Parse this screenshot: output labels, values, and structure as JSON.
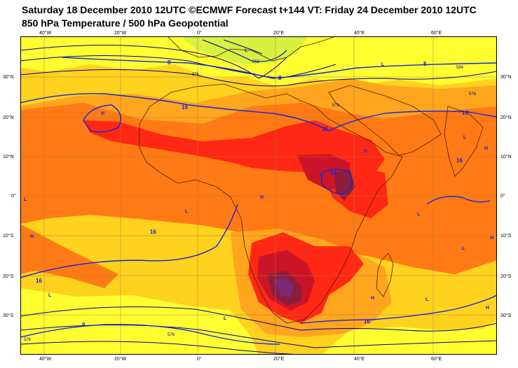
{
  "title_line1": "Saturday 18 December 2010 12UTC ©ECMWF Forecast t+144 VT: Friday 24 December 2010 12UTC",
  "title_line2": "850 hPa Temperature / 500 hPa Geopotential",
  "lon_labels": [
    "40°W",
    "20°W",
    "0°",
    "20°E",
    "40°E",
    "60°E"
  ],
  "lat_labels": [
    "30°N",
    "20°N",
    "10°N",
    "0°",
    "10°S",
    "20°S",
    "30°S"
  ],
  "colors": {
    "yellow": "#ffff30",
    "gold": "#ffd21e",
    "orange_light": "#ffa51e",
    "orange": "#ff7a14",
    "red": "#ff2814",
    "dark_red": "#cc1428",
    "maroon": "#8c1e3c",
    "purple": "#782a78",
    "green_yellow": "#d8f040",
    "isotherm": "#1428dc",
    "geopotential": "#000096"
  },
  "isotherm_labels": [
    "8",
    "8",
    "8",
    "8",
    "16",
    "16",
    "16",
    "16",
    "16",
    "16",
    "16",
    "24"
  ],
  "geopotential_labels": [
    "552",
    "576",
    "576",
    "584",
    "576",
    "576",
    "576"
  ],
  "pressure_centres": [
    "L",
    "L",
    "L",
    "L",
    "L",
    "L",
    "L",
    "L",
    "L",
    "L",
    "L",
    "L",
    "H",
    "H",
    "H",
    "H",
    "H",
    "H",
    "H",
    "H"
  ]
}
